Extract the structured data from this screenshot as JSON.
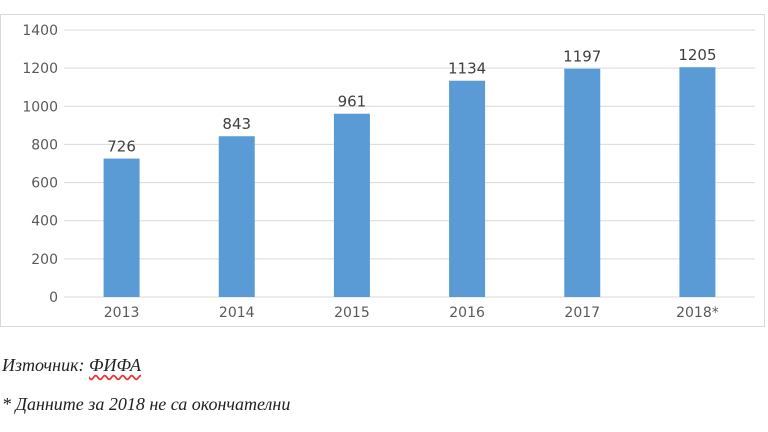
{
  "chart_data": {
    "type": "bar",
    "categories": [
      "2013",
      "2014",
      "2015",
      "2016",
      "2017",
      "2018*"
    ],
    "values": [
      726,
      843,
      961,
      1134,
      1197,
      1205
    ],
    "ylim": [
      0,
      1400
    ],
    "yticks": [
      0,
      200,
      400,
      600,
      800,
      1000,
      1200,
      1400
    ],
    "grid": true,
    "data_labels": true,
    "bar_color": "#5b9bd5"
  },
  "notes": {
    "source_label": "Източник: ",
    "source_name": "ФИФА",
    "footnote": "* Данните за 2018 не са окончателни"
  }
}
